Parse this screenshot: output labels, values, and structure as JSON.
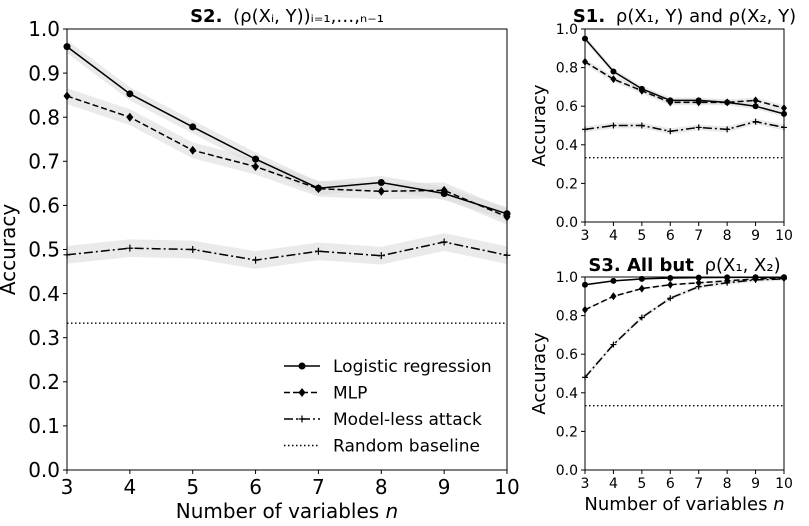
{
  "chart_data": [
    {
      "id": "S2",
      "type": "line",
      "title_bold": "S2.",
      "title_rest": "(ρ(Xᵢ, Y))ᵢ₌₁,…,ₙ₋₁",
      "xlabel": "Number of variables n",
      "ylabel": "Accuracy",
      "x": [
        3,
        4,
        5,
        6,
        7,
        8,
        9,
        10
      ],
      "xlim": [
        3,
        10
      ],
      "ylim": [
        0.0,
        1.0
      ],
      "xticks": [
        "3",
        "4",
        "5",
        "6",
        "7",
        "8",
        "9",
        "10"
      ],
      "yticks": [
        "0.0",
        "0.1",
        "0.2",
        "0.3",
        "0.4",
        "0.5",
        "0.6",
        "0.7",
        "0.8",
        "0.9",
        "1.0"
      ],
      "legend_position": "lower-right",
      "series": [
        {
          "name": "Logistic regression",
          "style": "solid",
          "marker": "circle",
          "values": [
            0.96,
            0.853,
            0.778,
            0.705,
            0.639,
            0.652,
            0.627,
            0.581
          ],
          "band": 0.015
        },
        {
          "name": "MLP",
          "style": "dashed",
          "marker": "diamond",
          "values": [
            0.848,
            0.8,
            0.725,
            0.688,
            0.638,
            0.632,
            0.634,
            0.574
          ],
          "band": 0.018
        },
        {
          "name": "Model-less attack",
          "style": "dashdot",
          "marker": "plus",
          "values": [
            0.488,
            0.503,
            0.5,
            0.476,
            0.496,
            0.486,
            0.517,
            0.487
          ],
          "band": 0.02
        },
        {
          "name": "Random baseline",
          "style": "dotted",
          "marker": "none",
          "values": [
            0.333,
            0.333,
            0.333,
            0.333,
            0.333,
            0.333,
            0.333,
            0.333
          ],
          "band": 0
        }
      ]
    },
    {
      "id": "S1",
      "type": "line",
      "title_bold": "S1.",
      "title_rest": "ρ(X₁, Y) and ρ(X₂, Y)",
      "xlabel": "",
      "ylabel": "Accuracy",
      "x": [
        3,
        4,
        5,
        6,
        7,
        8,
        9,
        10
      ],
      "xlim": [
        3,
        10
      ],
      "ylim": [
        0.0,
        1.0
      ],
      "xticks": [
        "3",
        "4",
        "5",
        "6",
        "7",
        "8",
        "9",
        "10"
      ],
      "yticks": [
        "0.0",
        "0.2",
        "0.4",
        "0.6",
        "0.8",
        "1.0"
      ],
      "series": [
        {
          "name": "Logistic regression",
          "style": "solid",
          "marker": "circle",
          "values": [
            0.95,
            0.78,
            0.69,
            0.63,
            0.63,
            0.62,
            0.6,
            0.56
          ],
          "band": 0.015
        },
        {
          "name": "MLP",
          "style": "dashed",
          "marker": "diamond",
          "values": [
            0.83,
            0.74,
            0.68,
            0.62,
            0.62,
            0.62,
            0.63,
            0.59
          ],
          "band": 0.015
        },
        {
          "name": "Model-less attack",
          "style": "dashdot",
          "marker": "plus",
          "values": [
            0.48,
            0.5,
            0.5,
            0.47,
            0.49,
            0.48,
            0.52,
            0.49
          ],
          "band": 0.015
        },
        {
          "name": "Random baseline",
          "style": "dotted",
          "marker": "none",
          "values": [
            0.333,
            0.333,
            0.333,
            0.333,
            0.333,
            0.333,
            0.333,
            0.333
          ],
          "band": 0
        }
      ]
    },
    {
      "id": "S3",
      "type": "line",
      "title_bold": "S3. All but",
      "title_rest": "ρ(X₁, X₂)",
      "xlabel": "Number of variables n",
      "ylabel": "Accuracy",
      "x": [
        3,
        4,
        5,
        6,
        7,
        8,
        9,
        10
      ],
      "xlim": [
        3,
        10
      ],
      "ylim": [
        0.0,
        1.0
      ],
      "xticks": [
        "3",
        "4",
        "5",
        "6",
        "7",
        "8",
        "9",
        "10"
      ],
      "yticks": [
        "0.0",
        "0.2",
        "0.4",
        "0.6",
        "0.8",
        "1.0"
      ],
      "series": [
        {
          "name": "Logistic regression",
          "style": "solid",
          "marker": "circle",
          "values": [
            0.96,
            0.98,
            0.99,
            0.995,
            0.997,
            0.998,
            0.999,
            0.999
          ],
          "band": 0.005
        },
        {
          "name": "MLP",
          "style": "dashed",
          "marker": "diamond",
          "values": [
            0.83,
            0.9,
            0.94,
            0.96,
            0.97,
            0.98,
            0.99,
            0.995
          ],
          "band": 0.005
        },
        {
          "name": "Model-less attack",
          "style": "dashdot",
          "marker": "plus",
          "values": [
            0.48,
            0.65,
            0.79,
            0.89,
            0.95,
            0.97,
            0.985,
            0.99
          ],
          "band": 0.01
        },
        {
          "name": "Random baseline",
          "style": "dotted",
          "marker": "none",
          "values": [
            0.333,
            0.333,
            0.333,
            0.333,
            0.333,
            0.333,
            0.333,
            0.333
          ],
          "band": 0
        }
      ]
    }
  ]
}
